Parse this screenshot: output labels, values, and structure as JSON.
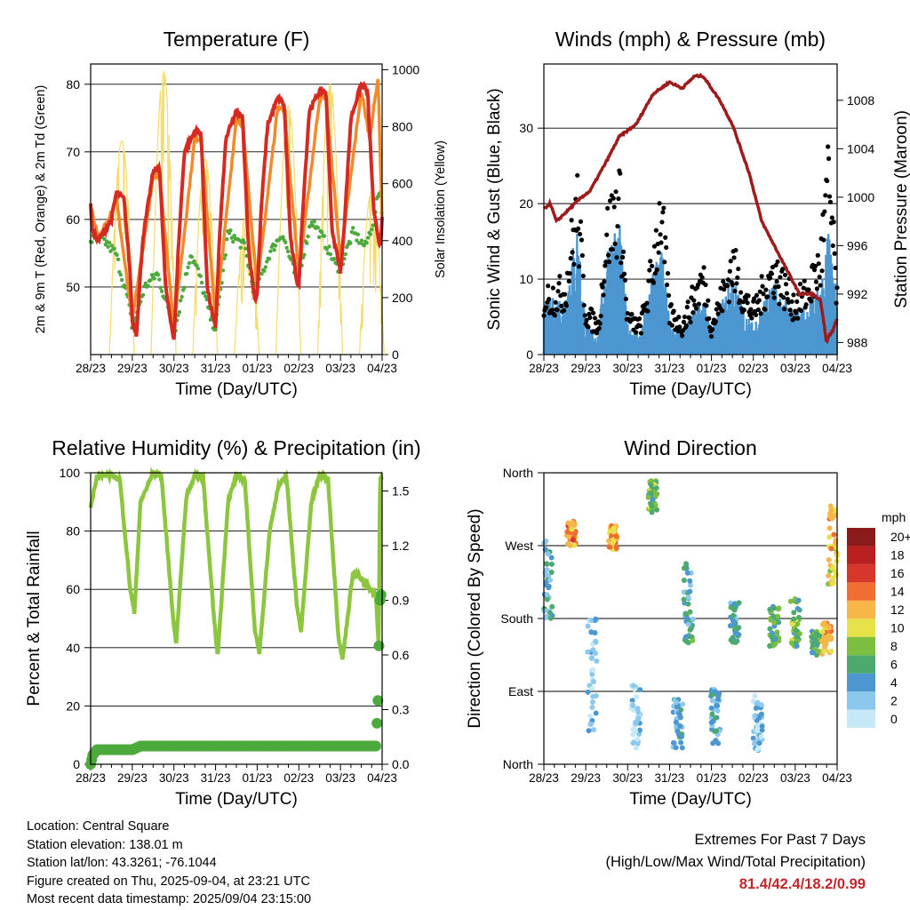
{
  "x_ticks": [
    "28/23",
    "29/23",
    "30/23",
    "31/23",
    "01/23",
    "02/23",
    "03/23",
    "04/23"
  ],
  "x_axis_label": "Time (Day/UTC)",
  "info": {
    "location": "Location: Central Square",
    "elevation": "Station elevation: 138.01 m",
    "latlon": "Station lat/lon: 43.3261; -76.1044",
    "created": "Figure created on Thu, 2025-09-04, at 23:21 UTC",
    "recent": "Most recent data timestamp: 2025/09/04 23:15:00"
  },
  "extremes": {
    "title": "Extremes For Past 7 Days",
    "subtitle": "(High/Low/Max Wind/Total Precipitation)",
    "values": "81.4/42.4/18.2/0.99"
  },
  "colors": {
    "temp2m": "#d42a22",
    "temp9m": "#f08a2a",
    "dewpoint": "#4caa3c",
    "solar": "#f5dc6a",
    "gust": "#000000",
    "wind": "#4d97d1",
    "pressure": "#9e1b1b",
    "rh": "#8cc63f",
    "precip": "#4caa3c"
  },
  "chart_data": [
    {
      "type": "line",
      "title": "Temperature (F)",
      "xlabel": "Time (Day/UTC)",
      "ylabel": "2m & 9m T (Red, Orange) & 2m Td (Green)",
      "ylabel_right": "Solar Insolation (Yellow)",
      "x": [
        "28/23",
        "29/23",
        "30/23",
        "31/23",
        "01/23",
        "02/23",
        "03/23",
        "04/23"
      ],
      "ylim": [
        40,
        83
      ],
      "yticks": [
        50,
        60,
        70,
        80
      ],
      "ylim_right": [
        0,
        1020
      ],
      "yticks_right": [
        0,
        200,
        400,
        600,
        800,
        1000
      ],
      "series": [
        {
          "name": "2m T",
          "x": [
            0,
            0.05,
            0.2,
            0.5,
            0.62,
            0.8,
            0.95,
            1.0,
            1.1,
            1.25,
            1.5,
            1.65,
            1.8,
            1.95,
            2.0,
            2.1,
            2.25,
            2.5,
            2.65,
            2.8,
            2.95,
            3.0,
            3.1,
            3.25,
            3.5,
            3.65,
            3.8,
            3.95,
            4.0,
            4.1,
            4.25,
            4.5,
            4.65,
            4.8,
            4.95,
            5.0,
            5.1,
            5.25,
            5.5,
            5.65,
            5.8,
            5.95,
            6.0,
            6.1,
            6.25,
            6.5,
            6.65,
            6.8,
            6.95,
            7.0
          ],
          "values": [
            62,
            58,
            57,
            60,
            64,
            63,
            52,
            45,
            43,
            57,
            67,
            68,
            50,
            44,
            42,
            55,
            70,
            73,
            73,
            50,
            45,
            44,
            58,
            72,
            76,
            75,
            55,
            48,
            49,
            62,
            74,
            78,
            77,
            57,
            51,
            50,
            62,
            76,
            79,
            79,
            58,
            54,
            52,
            60,
            75,
            80,
            79,
            61,
            56,
            60
          ]
        },
        {
          "name": "9m T",
          "x": [
            0,
            0.2,
            0.62,
            1.0,
            1.5,
            1.65,
            2.0,
            2.5,
            2.65,
            3.0,
            3.5,
            3.65,
            4.0,
            4.5,
            4.65,
            5.0,
            5.5,
            5.65,
            6.0,
            6.5,
            6.7,
            6.9,
            7.0
          ],
          "values": [
            62,
            57,
            63,
            45,
            66,
            67,
            44,
            72,
            72,
            45,
            75,
            74,
            50,
            77,
            76,
            52,
            78,
            78,
            54,
            79,
            72,
            81,
            60
          ]
        },
        {
          "name": "2m Td",
          "x": [
            0,
            0.3,
            0.6,
            0.9,
            1.0,
            1.3,
            1.6,
            1.9,
            2.0,
            2.4,
            2.6,
            2.9,
            3.0,
            3.3,
            3.7,
            3.9,
            4.0,
            4.3,
            4.6,
            4.9,
            5.0,
            5.3,
            5.6,
            5.9,
            6.0,
            6.3,
            6.6,
            6.8,
            6.95,
            7.0
          ],
          "values": [
            57,
            57,
            55,
            48,
            44,
            50,
            52,
            46,
            43,
            55,
            52,
            45,
            44,
            58,
            56,
            50,
            50,
            55,
            58,
            52,
            52,
            60,
            57,
            53,
            53,
            58,
            56,
            60,
            65,
            60
          ]
        },
        {
          "name": "Solar",
          "axis": "right",
          "days": 7,
          "peak": 1000
        }
      ]
    },
    {
      "type": "line",
      "title": "Winds (mph) & Pressure (mb)",
      "xlabel": "Time (Day/UTC)",
      "ylabel": "Sonic Wind & Gust (Blue, Black)",
      "ylabel_right": "Station Pressure (Maroon)",
      "x": [
        "28/23",
        "29/23",
        "30/23",
        "31/23",
        "01/23",
        "02/23",
        "03/23",
        "04/23"
      ],
      "ylim": [
        0,
        38.5
      ],
      "yticks": [
        0,
        10,
        20,
        30
      ],
      "ylim_right": [
        987,
        1011
      ],
      "yticks_right": [
        988,
        992,
        996,
        1000,
        1004,
        1008
      ],
      "series": [
        {
          "name": "Pressure",
          "axis": "right",
          "x": [
            0,
            0.15,
            0.3,
            0.6,
            0.9,
            1.1,
            1.5,
            1.8,
            2.2,
            2.6,
            3.0,
            3.3,
            3.6,
            3.8,
            4.0,
            4.2,
            4.5,
            4.9,
            5.2,
            5.5,
            5.8,
            6.1,
            6.4,
            6.6,
            6.75,
            6.8,
            6.9,
            7.0
          ],
          "values": [
            999,
            999.5,
            998,
            999,
            1000,
            1000.5,
            1003,
            1005,
            1006,
            1008.5,
            1009.5,
            1009,
            1010,
            1010,
            1009,
            1008,
            1006,
            1002,
            998,
            996,
            994,
            992,
            992,
            991.5,
            988,
            988.5,
            989,
            990
          ]
        },
        {
          "name": "Wind",
          "x": [
            0,
            0.5,
            0.8,
            1.0,
            1.3,
            1.5,
            1.8,
            2.0,
            2.3,
            2.5,
            2.8,
            3.0,
            3.3,
            3.5,
            3.8,
            4.0,
            4.3,
            4.5,
            4.8,
            5.0,
            5.3,
            5.5,
            5.8,
            6.0,
            6.3,
            6.6,
            6.8,
            7.0
          ],
          "values": [
            5,
            6,
            13,
            3,
            2,
            11,
            13,
            3,
            2,
            6,
            12,
            3,
            2,
            4,
            6,
            2,
            6,
            8,
            4,
            3,
            6,
            7,
            5,
            4,
            5,
            7,
            12,
            5
          ]
        },
        {
          "name": "Gust",
          "x": [
            0,
            0.5,
            0.8,
            1.0,
            1.3,
            1.5,
            1.8,
            2.0,
            2.3,
            2.5,
            2.8,
            3.0,
            3.3,
            3.5,
            3.8,
            4.0,
            4.3,
            4.5,
            4.8,
            5.0,
            5.3,
            5.5,
            5.8,
            6.0,
            6.3,
            6.6,
            6.8,
            7.0
          ],
          "values": [
            8,
            9,
            21,
            6,
            4,
            17,
            22,
            5,
            4,
            9,
            21,
            6,
            4,
            7,
            11,
            4,
            9,
            13,
            8,
            6,
            10,
            12,
            9,
            7,
            9,
            13,
            25,
            8
          ]
        }
      ]
    },
    {
      "type": "line",
      "title": "Relative Humidity (%) & Precipitation (in)",
      "xlabel": "Time (Day/UTC)",
      "ylabel": "Percent & Total Rainfall",
      "x": [
        "28/23",
        "29/23",
        "30/23",
        "31/23",
        "01/23",
        "02/23",
        "03/23",
        "04/23"
      ],
      "ylim": [
        0,
        100
      ],
      "yticks": [
        0,
        20,
        40,
        60,
        80,
        100
      ],
      "ylim_right": [
        0,
        1.6
      ],
      "yticks_right": [
        "0.0",
        "0.3",
        "0.6",
        "0.9",
        "1.2",
        "1.5"
      ],
      "series": [
        {
          "name": "RH",
          "x": [
            0,
            0.15,
            0.5,
            0.7,
            0.95,
            1.05,
            1.2,
            1.5,
            1.7,
            1.95,
            2.05,
            2.3,
            2.5,
            2.7,
            2.95,
            3.05,
            3.3,
            3.5,
            3.7,
            3.95,
            4.05,
            4.3,
            4.5,
            4.7,
            4.95,
            5.05,
            5.3,
            5.5,
            5.7,
            5.95,
            6.05,
            6.3,
            6.6,
            6.85,
            6.92,
            6.95,
            7.0
          ],
          "values": [
            88,
            99,
            99,
            98,
            60,
            52,
            90,
            100,
            99,
            55,
            41,
            92,
            99,
            99,
            52,
            37,
            90,
            99,
            98,
            45,
            38,
            80,
            95,
            99,
            55,
            45,
            90,
            99,
            98,
            44,
            36,
            66,
            62,
            58,
            40,
            98,
            98
          ]
        },
        {
          "name": "Precip",
          "x": [
            0,
            0.05,
            0.15,
            0.3,
            1.0,
            1.2,
            2.0,
            3.0,
            4.0,
            5.0,
            6.0,
            6.85,
            6.9,
            6.92,
            6.95,
            7.0
          ],
          "values": [
            0,
            0.05,
            0.08,
            0.08,
            0.08,
            0.1,
            0.1,
            0.1,
            0.1,
            0.1,
            0.1,
            0.1,
            0.35,
            0.6,
            0.9,
            0.96
          ]
        }
      ]
    },
    {
      "type": "scatter",
      "title": "Wind Direction",
      "xlabel": "Time (Day/UTC)",
      "ylabel": "Direction (Colored By Speed)",
      "x": [
        "28/23",
        "29/23",
        "30/23",
        "31/23",
        "01/23",
        "02/23",
        "03/23",
        "04/23"
      ],
      "yticks": [
        "North",
        "East",
        "South",
        "West",
        "North"
      ],
      "ylim": [
        0,
        360
      ],
      "colorbar": {
        "title": "mph",
        "labels": [
          "0",
          "2",
          "4",
          "6",
          "8",
          "10",
          "12",
          "14",
          "16",
          "18",
          "20+"
        ],
        "colors": [
          "#c6e9f8",
          "#8cc8ee",
          "#4d97d1",
          "#4caa6c",
          "#7cbf3f",
          "#e7e24a",
          "#f8b548",
          "#f06e2f",
          "#d7362a",
          "#b9201f",
          "#8b1a1a"
        ]
      },
      "clusters": [
        {
          "day": 0.1,
          "dir": 230,
          "spread": 50,
          "speed": 4
        },
        {
          "day": 0.65,
          "dir": 285,
          "spread": 15,
          "speed": 13
        },
        {
          "day": 1.15,
          "dir": 110,
          "spread": 70,
          "speed": 2
        },
        {
          "day": 1.65,
          "dir": 280,
          "spread": 15,
          "speed": 12
        },
        {
          "day": 2.2,
          "dir": 60,
          "spread": 40,
          "speed": 1
        },
        {
          "day": 2.6,
          "dir": 330,
          "spread": 20,
          "speed": 7
        },
        {
          "day": 3.2,
          "dir": 50,
          "spread": 30,
          "speed": 3
        },
        {
          "day": 3.45,
          "dir": 200,
          "spread": 50,
          "speed": 5
        },
        {
          "day": 4.1,
          "dir": 60,
          "spread": 35,
          "speed": 3
        },
        {
          "day": 4.55,
          "dir": 175,
          "spread": 25,
          "speed": 5
        },
        {
          "day": 5.1,
          "dir": 50,
          "spread": 35,
          "speed": 2
        },
        {
          "day": 5.5,
          "dir": 170,
          "spread": 25,
          "speed": 6
        },
        {
          "day": 6.0,
          "dir": 175,
          "spread": 30,
          "speed": 7
        },
        {
          "day": 6.5,
          "dir": 150,
          "spread": 15,
          "speed": 6
        },
        {
          "day": 6.75,
          "dir": 155,
          "spread": 20,
          "speed": 12
        },
        {
          "day": 6.9,
          "dir": 270,
          "spread": 50,
          "speed": 11
        }
      ]
    }
  ]
}
